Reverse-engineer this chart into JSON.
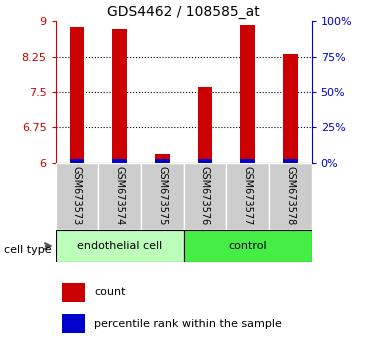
{
  "title": "GDS4462 / 108585_at",
  "samples": [
    "GSM673573",
    "GSM673574",
    "GSM673575",
    "GSM673576",
    "GSM673577",
    "GSM673578"
  ],
  "red_values": [
    8.87,
    8.83,
    6.18,
    7.6,
    8.93,
    8.3
  ],
  "blue_pct": [
    2.5,
    2.5,
    2.5,
    2.5,
    2.5,
    2.5
  ],
  "ylim_left": [
    6.0,
    9.0
  ],
  "ylim_right": [
    0,
    100
  ],
  "yticks_left": [
    6.0,
    6.75,
    7.5,
    8.25,
    9.0
  ],
  "ytick_labels_left": [
    "6",
    "6.75",
    "7.5",
    "8.25",
    "9"
  ],
  "yticks_right": [
    0,
    25,
    50,
    75,
    100
  ],
  "ytick_labels_right": [
    "0%",
    "25%",
    "50%",
    "75%",
    "100%"
  ],
  "cell_types": [
    {
      "label": "endothelial cell",
      "start": 0,
      "end": 3,
      "color": "#bbffbb"
    },
    {
      "label": "control",
      "start": 3,
      "end": 6,
      "color": "#44ee44"
    }
  ],
  "left_axis_color": "#cc0000",
  "right_axis_color": "#0000cc",
  "red_bar_color": "#cc0000",
  "blue_bar_color": "#0000cc",
  "bar_width": 0.35,
  "legend_red_label": "count",
  "legend_blue_label": "percentile rank within the sample",
  "cell_type_label": "cell type",
  "xlabel_area_color": "#cccccc",
  "grid_dotted_ticks": [
    6.75,
    7.5,
    8.25
  ]
}
